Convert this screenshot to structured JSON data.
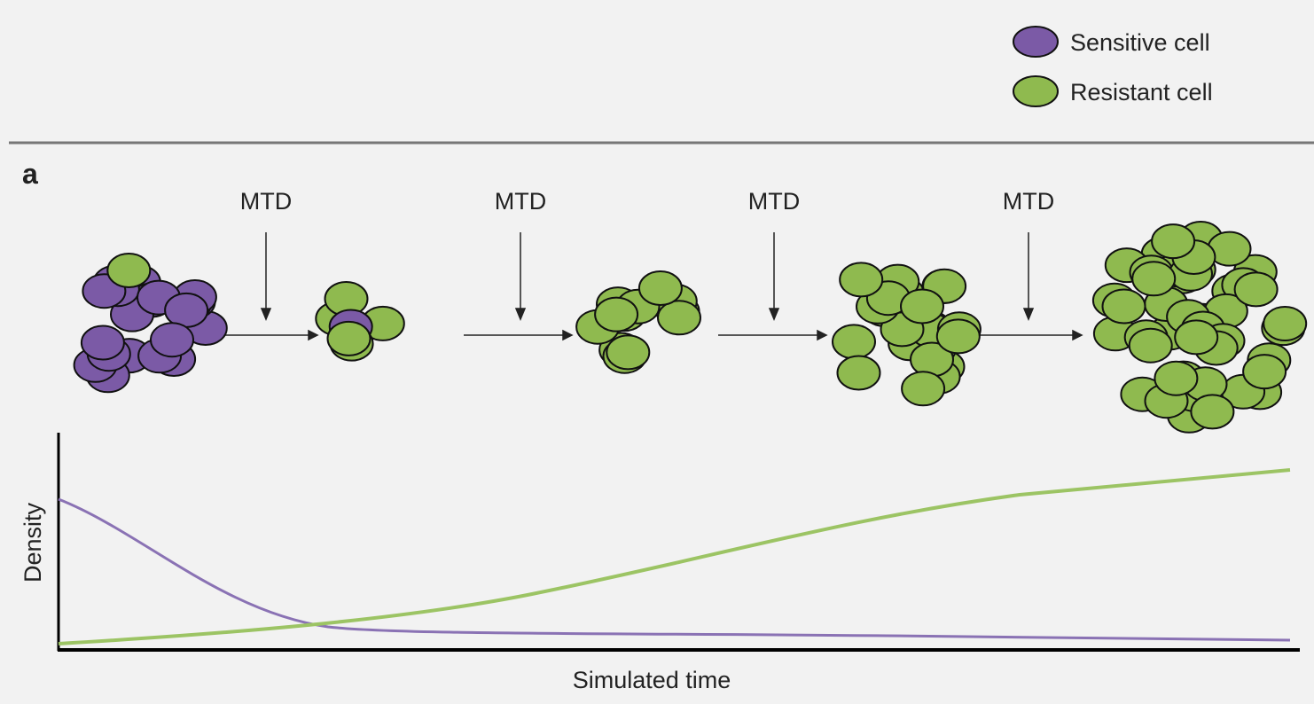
{
  "legend": [
    {
      "label": "Sensitive cell"
    },
    {
      "label": "Resistant cell"
    }
  ],
  "panel": "a",
  "doses": [
    "MTD",
    "MTD",
    "MTD",
    "MTD"
  ],
  "axes": {
    "y_label": "Density",
    "x_label": "Simulated time"
  }
}
